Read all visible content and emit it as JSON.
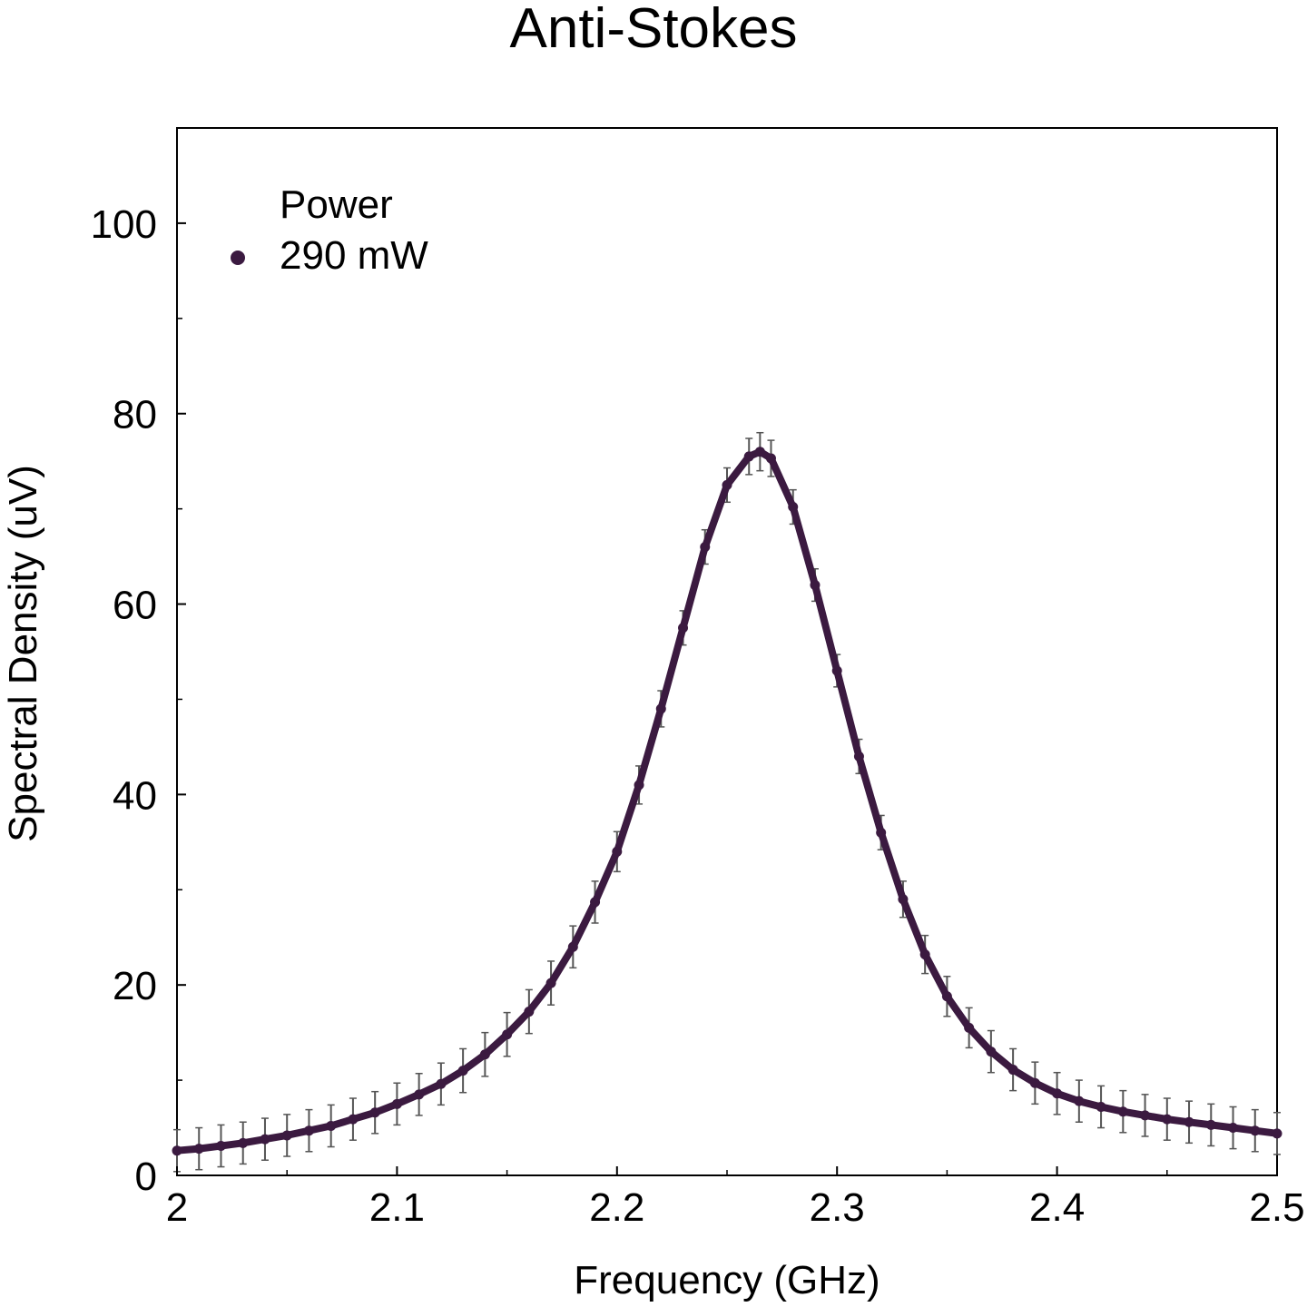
{
  "chart_data": {
    "type": "scatter",
    "title": "Anti-Stokes",
    "xlabel": "Frequency (GHz)",
    "ylabel": "Spectral Density (uV)",
    "xlim": [
      2.0,
      2.5
    ],
    "ylim": [
      0,
      110
    ],
    "x_ticks": [
      {
        "value": 2.0,
        "label": "2"
      },
      {
        "value": 2.1,
        "label": "2.1"
      },
      {
        "value": 2.2,
        "label": "2.2"
      },
      {
        "value": 2.3,
        "label": "2.3"
      },
      {
        "value": 2.4,
        "label": "2.4"
      },
      {
        "value": 2.5,
        "label": "2.5"
      }
    ],
    "y_ticks": [
      {
        "value": 0,
        "label": "0"
      },
      {
        "value": 20,
        "label": "20"
      },
      {
        "value": 40,
        "label": "40"
      },
      {
        "value": 60,
        "label": "60"
      },
      {
        "value": 80,
        "label": "80"
      },
      {
        "value": 100,
        "label": "100"
      }
    ],
    "grid": false,
    "legend": {
      "title": "Power",
      "placement": "top-left"
    },
    "error_bars": true,
    "series": [
      {
        "name": "290 mW",
        "color": "#3b1a40",
        "errorbar_color": "#555555",
        "x": [
          2.0,
          2.01,
          2.02,
          2.03,
          2.04,
          2.05,
          2.06,
          2.07,
          2.08,
          2.09,
          2.1,
          2.11,
          2.12,
          2.13,
          2.14,
          2.15,
          2.16,
          2.17,
          2.18,
          2.19,
          2.2,
          2.21,
          2.22,
          2.23,
          2.24,
          2.25,
          2.26,
          2.265,
          2.27,
          2.28,
          2.29,
          2.3,
          2.31,
          2.32,
          2.33,
          2.34,
          2.35,
          2.36,
          2.37,
          2.38,
          2.39,
          2.4,
          2.41,
          2.42,
          2.43,
          2.44,
          2.45,
          2.46,
          2.47,
          2.48,
          2.49,
          2.5
        ],
        "y": [
          2.6,
          2.8,
          3.1,
          3.4,
          3.8,
          4.2,
          4.7,
          5.2,
          5.9,
          6.6,
          7.5,
          8.5,
          9.6,
          11.0,
          12.7,
          14.8,
          17.2,
          20.2,
          24.0,
          28.7,
          34.0,
          41.0,
          49.0,
          57.5,
          66.0,
          72.5,
          75.5,
          76.0,
          75.3,
          70.2,
          62.0,
          53.0,
          44.0,
          36.0,
          29.0,
          23.2,
          18.8,
          15.5,
          13.0,
          11.1,
          9.7,
          8.6,
          7.8,
          7.2,
          6.7,
          6.3,
          5.9,
          5.6,
          5.3,
          5.0,
          4.7,
          4.4
        ],
        "error": [
          2.2,
          2.2,
          2.2,
          2.2,
          2.2,
          2.2,
          2.2,
          2.2,
          2.2,
          2.2,
          2.2,
          2.2,
          2.2,
          2.3,
          2.3,
          2.3,
          2.3,
          2.3,
          2.2,
          2.2,
          2.1,
          2.0,
          1.9,
          1.8,
          1.8,
          1.8,
          1.9,
          2.0,
          1.9,
          1.8,
          1.7,
          1.7,
          1.8,
          1.8,
          1.9,
          2.0,
          2.1,
          2.1,
          2.2,
          2.2,
          2.2,
          2.2,
          2.2,
          2.2,
          2.2,
          2.2,
          2.2,
          2.2,
          2.2,
          2.2,
          2.2,
          2.2
        ]
      }
    ]
  }
}
